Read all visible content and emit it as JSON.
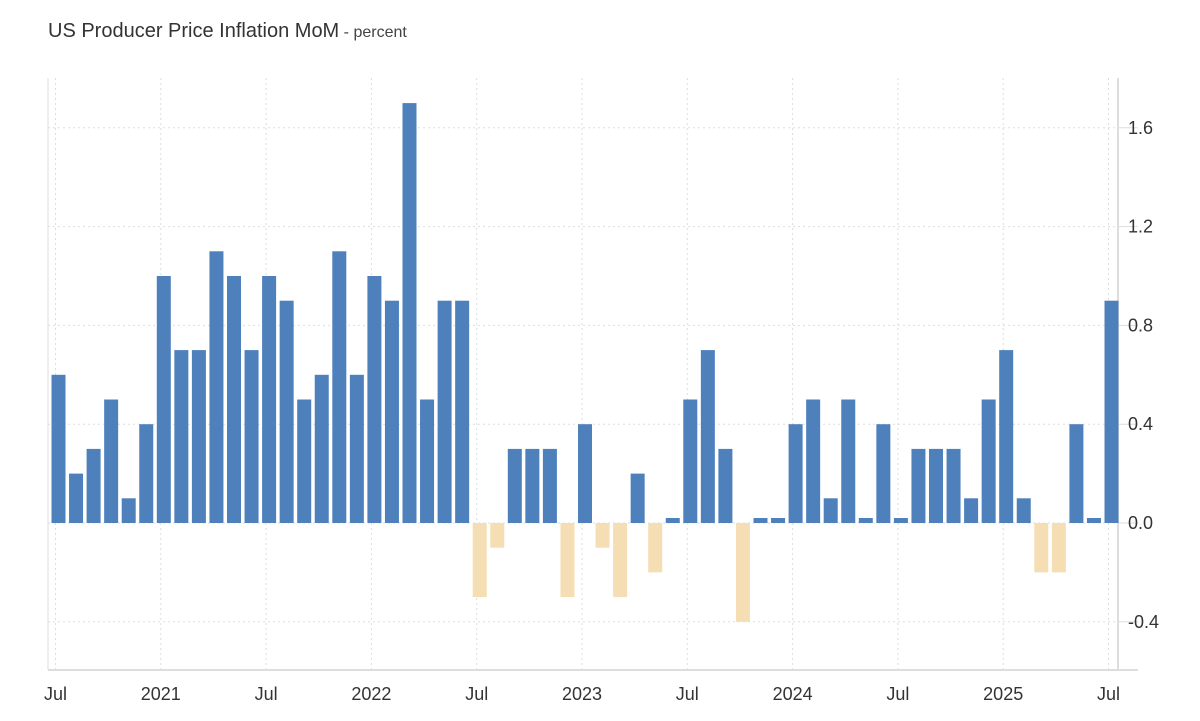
{
  "chart_data": {
    "type": "bar",
    "title": "US Producer Price Inflation MoM",
    "unit": "percent",
    "xlabel": "",
    "ylabel": "",
    "ylim": [
      -0.6,
      1.8
    ],
    "y_ticks": [
      "1.6",
      "1.2",
      "0.8",
      "0.4",
      "0.0",
      "-0.4"
    ],
    "y_tick_values": [
      1.6,
      1.2,
      0.8,
      0.4,
      0.0,
      -0.4
    ],
    "x_tick_labels": [
      "Jul",
      "2021",
      "Jul",
      "2022",
      "Jul",
      "2023",
      "Jul",
      "2024",
      "Jul",
      "2025",
      "Jul"
    ],
    "x_tick_months": [
      "2020-07",
      "2021-01",
      "2021-07",
      "2022-01",
      "2022-07",
      "2023-01",
      "2023-07",
      "2024-01",
      "2024-07",
      "2025-01",
      "2025-07"
    ],
    "grid": true,
    "legend": "none",
    "colors": {
      "positive": "#4e80bc",
      "negative": "#f5deb3",
      "grid": "#dddddd",
      "axis": "#dddddd"
    },
    "categories": [
      "2020-07",
      "2020-08",
      "2020-09",
      "2020-10",
      "2020-11",
      "2020-12",
      "2021-01",
      "2021-02",
      "2021-03",
      "2021-04",
      "2021-05",
      "2021-06",
      "2021-07",
      "2021-08",
      "2021-09",
      "2021-10",
      "2021-11",
      "2021-12",
      "2022-01",
      "2022-02",
      "2022-03",
      "2022-04",
      "2022-05",
      "2022-06",
      "2022-07",
      "2022-08",
      "2022-09",
      "2022-10",
      "2022-11",
      "2022-12",
      "2023-01",
      "2023-02",
      "2023-03",
      "2023-04",
      "2023-05",
      "2023-06",
      "2023-07",
      "2023-08",
      "2023-09",
      "2023-10",
      "2023-11",
      "2023-12",
      "2024-01",
      "2024-02",
      "2024-03",
      "2024-04",
      "2024-05",
      "2024-06",
      "2024-07",
      "2024-08",
      "2024-09",
      "2024-10",
      "2024-11",
      "2024-12",
      "2025-01",
      "2025-02",
      "2025-03",
      "2025-04",
      "2025-05",
      "2025-06",
      "2025-07"
    ],
    "values": [
      0.6,
      0.2,
      0.3,
      0.5,
      0.1,
      0.4,
      1.0,
      0.7,
      0.7,
      1.1,
      1.0,
      0.7,
      1.0,
      0.9,
      0.5,
      0.6,
      1.1,
      0.6,
      1.0,
      0.9,
      1.7,
      0.5,
      0.9,
      0.9,
      -0.3,
      -0.1,
      0.3,
      0.3,
      0.3,
      -0.3,
      0.4,
      -0.1,
      -0.3,
      0.2,
      -0.2,
      0.0,
      0.5,
      0.7,
      0.3,
      -0.4,
      0.0,
      0.0,
      0.4,
      0.5,
      0.1,
      0.5,
      0.0,
      0.4,
      0.0,
      0.3,
      0.3,
      0.3,
      0.1,
      0.5,
      0.7,
      0.1,
      -0.2,
      -0.2,
      0.4,
      0.0,
      0.9
    ]
  }
}
